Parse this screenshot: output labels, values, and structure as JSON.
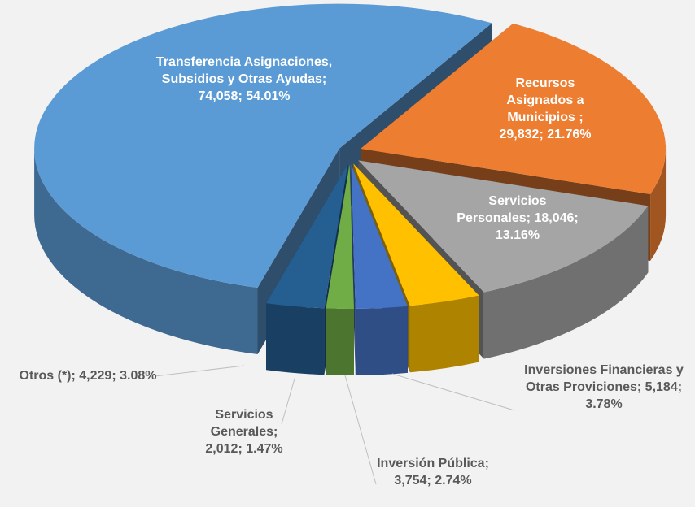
{
  "chart_data": {
    "type": "pie3d",
    "categories": [
      "Recursos Asignados a Municipios ",
      "Servicios Personales",
      "Inversiones Financieras y Otras Proviciones",
      "Inversión Pública",
      "Servicios Generales",
      "Otros (*)",
      "Transferencia Asignaciones, Subsidios y Otras Ayudas"
    ],
    "values": [
      29832,
      18046,
      5184,
      3754,
      2012,
      4229,
      74058
    ],
    "value_labels": [
      "29,832",
      "18,046",
      "5,184",
      "3,754",
      "2,012",
      "4,229",
      "74,058"
    ],
    "percents": [
      21.76,
      13.16,
      3.78,
      2.74,
      1.47,
      3.08,
      54.01
    ],
    "percent_labels": [
      "21.76%",
      "13.16%",
      "3.78%",
      "2.74%",
      "1.47%",
      "3.08%",
      "54.01%"
    ],
    "colors": [
      "#ed7d31",
      "#a5a5a5",
      "#ffc000",
      "#4472c4",
      "#70ad47",
      "#255e91",
      "#5b9bd5"
    ]
  }
}
